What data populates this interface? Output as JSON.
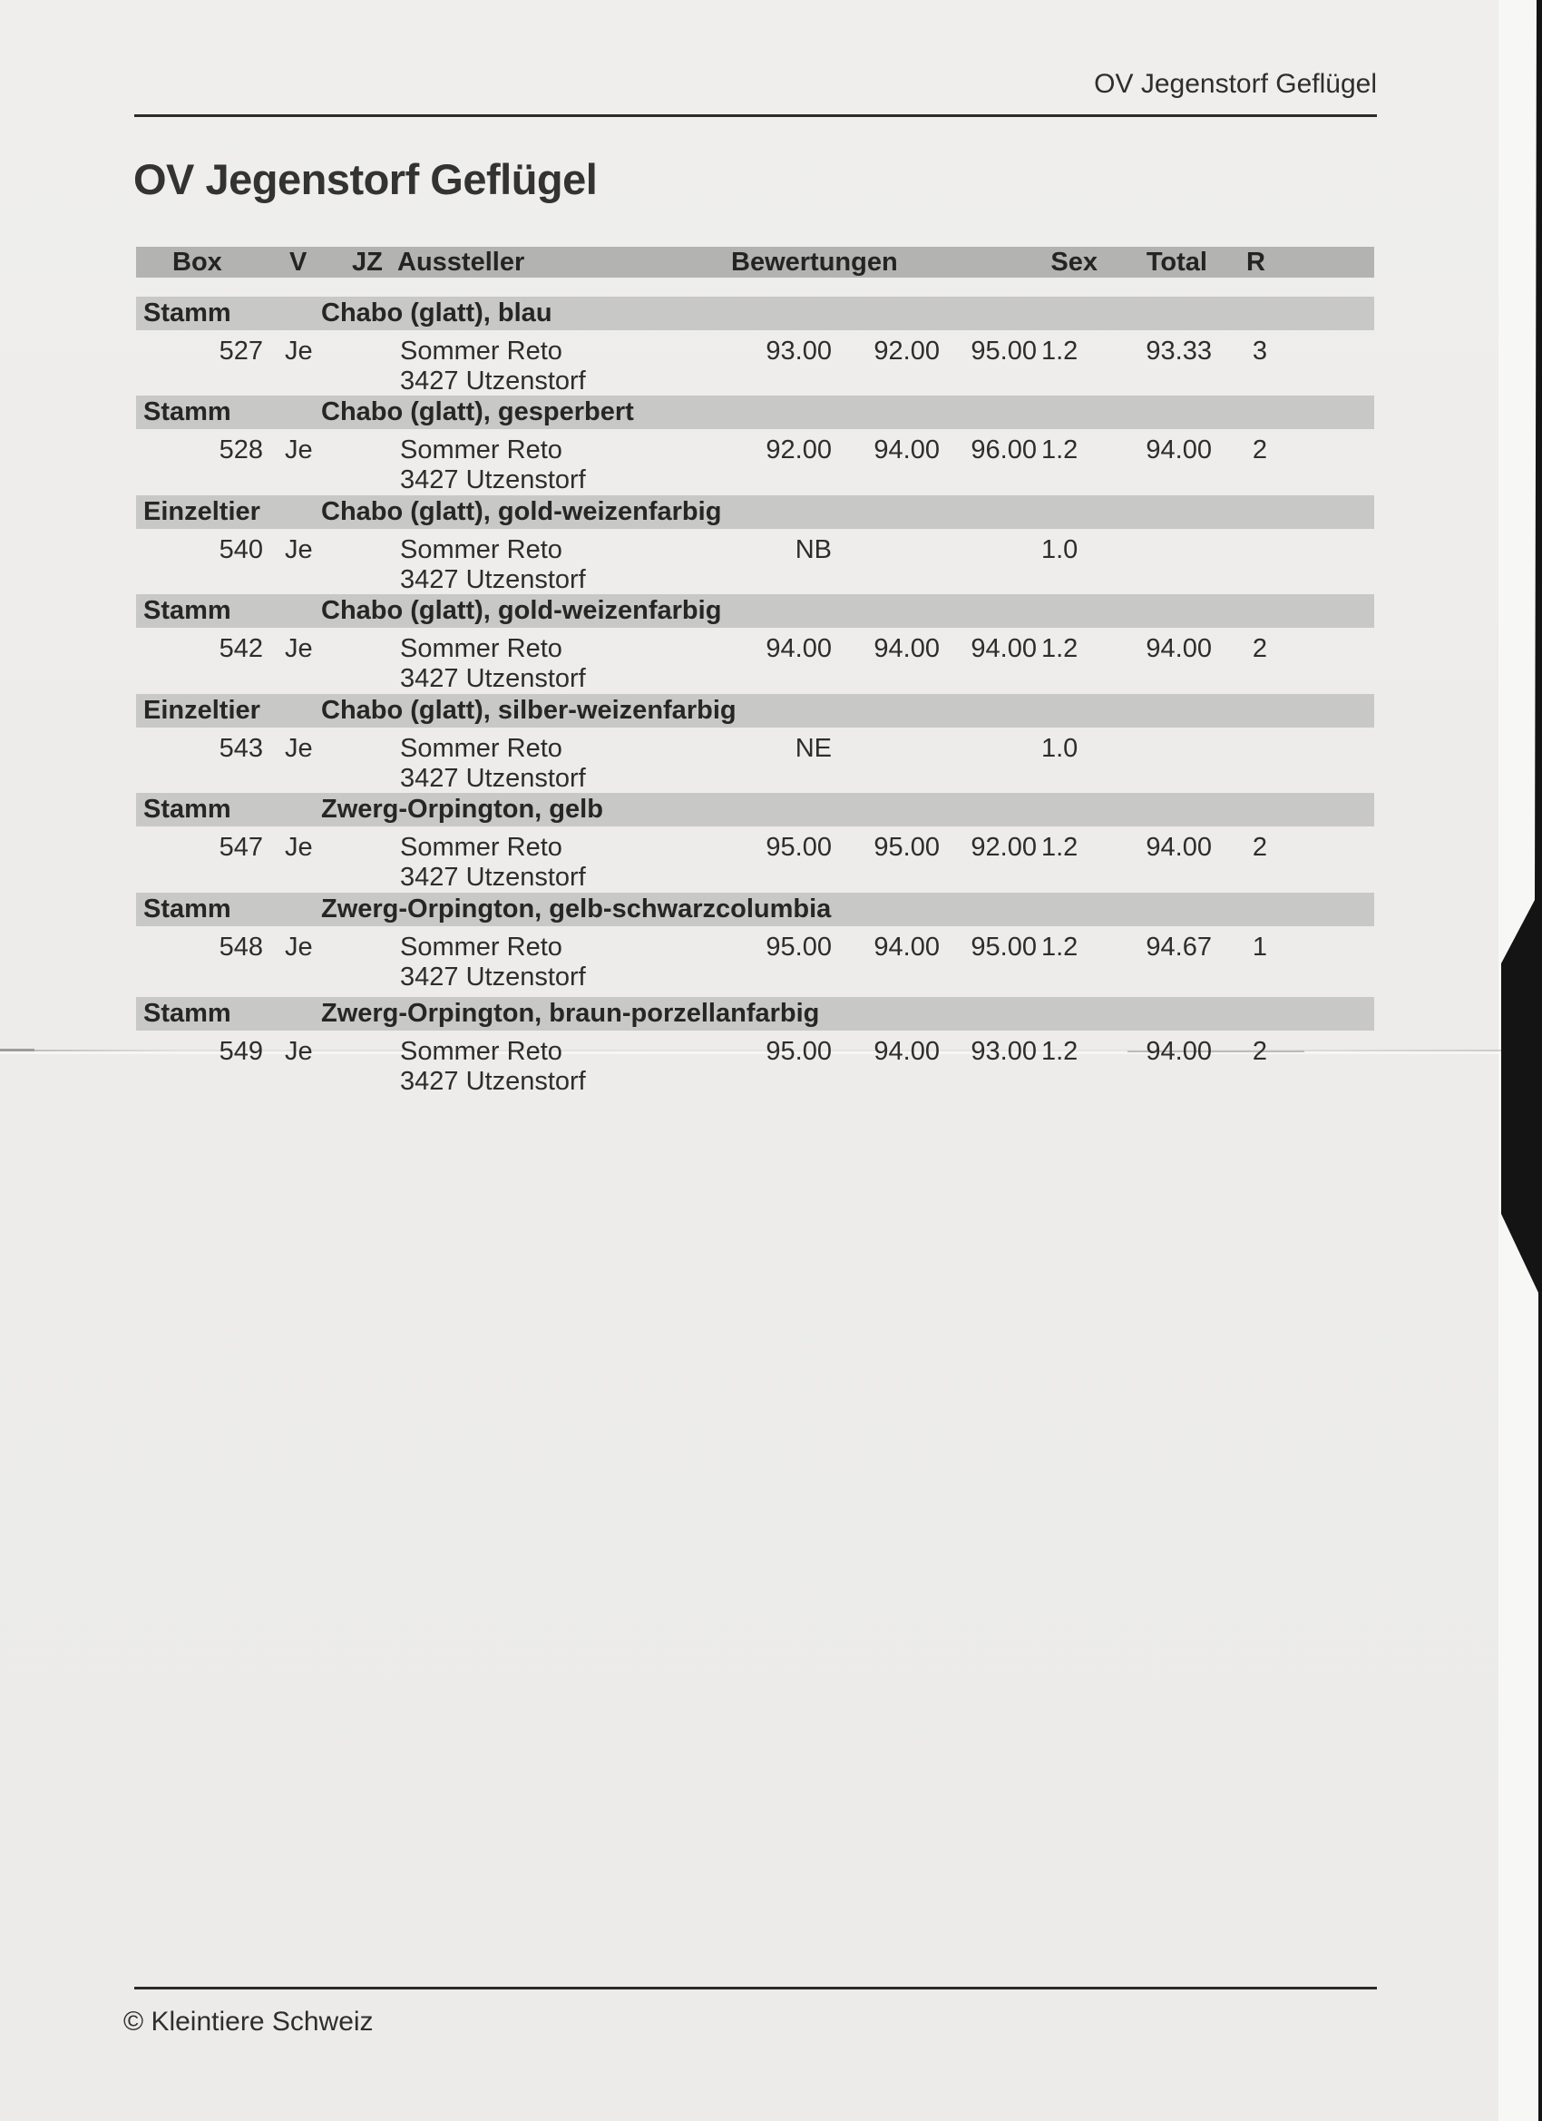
{
  "page": {
    "header_right": "OV Jegenstorf Geflügel",
    "title": "OV Jegenstorf Geflügel",
    "footer": "© Kleintiere Schweiz"
  },
  "table": {
    "columns": {
      "box": "Box",
      "v": "V",
      "jz": "JZ",
      "aussteller": "Aussteller",
      "bewertungen": "Bewertungen",
      "sex": "Sex",
      "total": "Total",
      "r": "R"
    },
    "sections": [
      {
        "type": "Stamm",
        "breed": "Chabo (glatt), blau",
        "rows": [
          {
            "box": "527",
            "v": "Je",
            "name": "Sommer Reto",
            "city": "3427 Utzenstorf",
            "b1": "93.00",
            "b2": "92.00",
            "b3": "95.00",
            "sex": "1.2",
            "total": "93.33",
            "r": "3"
          }
        ]
      },
      {
        "type": "Stamm",
        "breed": "Chabo (glatt), gesperbert",
        "rows": [
          {
            "box": "528",
            "v": "Je",
            "name": "Sommer Reto",
            "city": "3427 Utzenstorf",
            "b1": "92.00",
            "b2": "94.00",
            "b3": "96.00",
            "sex": "1.2",
            "total": "94.00",
            "r": "2"
          }
        ]
      },
      {
        "type": "Einzeltier",
        "breed": "Chabo (glatt), gold-weizenfarbig",
        "rows": [
          {
            "box": "540",
            "v": "Je",
            "name": "Sommer Reto",
            "city": "3427 Utzenstorf",
            "b1": "NB",
            "b2": "",
            "b3": "",
            "sex": "1.0",
            "total": "",
            "r": ""
          }
        ]
      },
      {
        "type": "Stamm",
        "breed": "Chabo (glatt), gold-weizenfarbig",
        "rows": [
          {
            "box": "542",
            "v": "Je",
            "name": "Sommer Reto",
            "city": "3427 Utzenstorf",
            "b1": "94.00",
            "b2": "94.00",
            "b3": "94.00",
            "sex": "1.2",
            "total": "94.00",
            "r": "2"
          }
        ]
      },
      {
        "type": "Einzeltier",
        "breed": "Chabo (glatt), silber-weizenfarbig",
        "rows": [
          {
            "box": "543",
            "v": "Je",
            "name": "Sommer Reto",
            "city": "3427 Utzenstorf",
            "b1": "NE",
            "b2": "",
            "b3": "",
            "sex": "1.0",
            "total": "",
            "r": ""
          }
        ]
      },
      {
        "type": "Stamm",
        "breed": "Zwerg-Orpington, gelb",
        "rows": [
          {
            "box": "547",
            "v": "Je",
            "name": "Sommer Reto",
            "city": "3427 Utzenstorf",
            "b1": "95.00",
            "b2": "95.00",
            "b3": "92.00",
            "sex": "1.2",
            "total": "94.00",
            "r": "2"
          }
        ]
      },
      {
        "type": "Stamm",
        "breed": "Zwerg-Orpington, gelb-schwarzcolumbia",
        "rows": [
          {
            "box": "548",
            "v": "Je",
            "name": "Sommer Reto",
            "city": "3427 Utzenstorf",
            "b1": "95.00",
            "b2": "94.00",
            "b3": "95.00",
            "sex": "1.2",
            "total": "94.67",
            "r": "1"
          }
        ]
      },
      {
        "type": "Stamm",
        "breed": "Zwerg-Orpington, braun-porzellanfarbig",
        "rows": [
          {
            "box": "549",
            "v": "Je",
            "name": "Sommer Reto",
            "city": "3427 Utzenstorf",
            "b1": "95.00",
            "b2": "94.00",
            "b3": "93.00",
            "sex": "1.2",
            "total": "94.00",
            "r": "2"
          }
        ]
      }
    ]
  },
  "colors": {
    "paper": "#edecea",
    "header_band": "#b3b3b1",
    "section_band": "#c8c8c6",
    "text": "#2d2d2d",
    "rule": "#2b2b2b",
    "scanner_edge": "#141414"
  }
}
